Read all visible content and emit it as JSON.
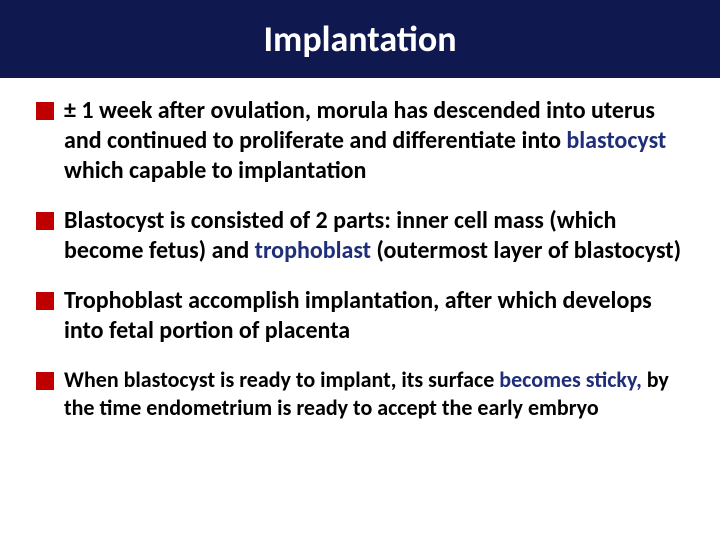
{
  "header": {
    "title": "Implantation",
    "background_color": "#10194f",
    "title_color": "#ffffff",
    "title_fontsize": 36
  },
  "bullets": {
    "marker_color": "#c00000",
    "text_color": "#000000",
    "highlight_color": "#1f2e7a",
    "items": [
      {
        "parts": [
          {
            "t": "± 1 week after ovulation, morula has descended into uterus and continued to proliferate and differentiate into "
          },
          {
            "t": "blastocyst",
            "hl": true
          },
          {
            "t": " which capable to implantation"
          }
        ],
        "fontsize": 24
      },
      {
        "parts": [
          {
            "t": "Blastocyst is consisted of 2 parts: inner cell mass (which become fetus) and "
          },
          {
            "t": "trophoblast",
            "hl": true
          },
          {
            "t": " (outermost layer of blastocyst)"
          }
        ],
        "fontsize": 24
      },
      {
        "parts": [
          {
            "t": "Trophoblast accomplish implantation, after which develops into fetal portion of placenta"
          }
        ],
        "fontsize": 24
      },
      {
        "parts": [
          {
            "t": "When blastocyst is ready to implant, its surface "
          },
          {
            "t": "becomes sticky,",
            "hl": true
          },
          {
            "t": " by the time endometrium is ready to accept the early embryo"
          }
        ],
        "fontsize": 22
      }
    ]
  }
}
